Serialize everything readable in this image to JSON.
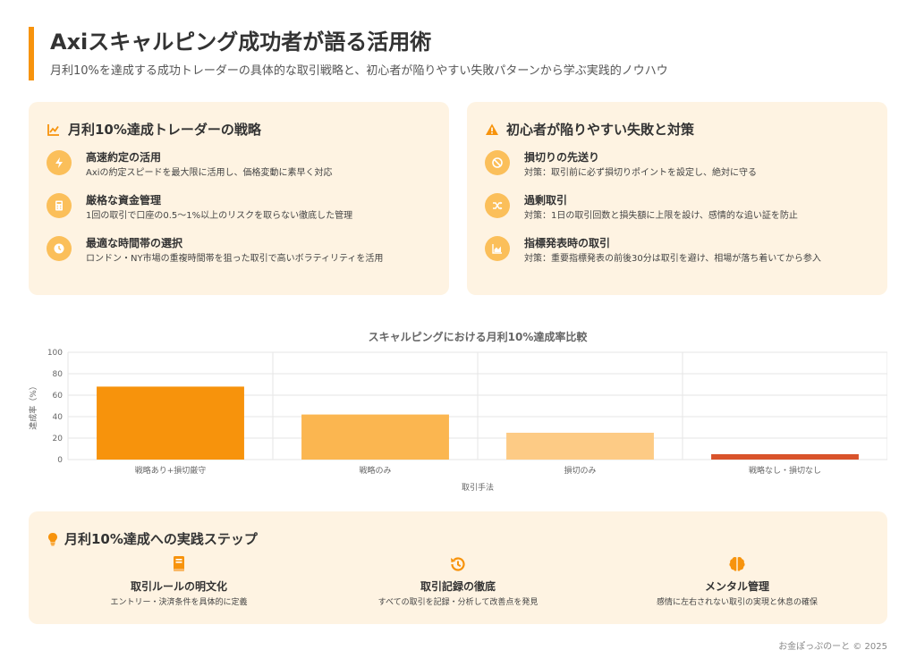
{
  "header": {
    "title": "Axiスキャルピング成功者が語る活用術",
    "subtitle": "月利10%を達成する成功トレーダーの具体的な取引戦略と、初心者が陥りやすい失敗パターンから学ぶ実践的ノウハウ"
  },
  "strategy": {
    "title": "月利10%達成トレーダーの戦略",
    "icon": "chart-line-icon",
    "items": [
      {
        "icon": "bolt-icon",
        "title": "高速約定の活用",
        "desc": "Axiの約定スピードを最大限に活用し、価格変動に素早く対応"
      },
      {
        "icon": "calculator-icon",
        "title": "厳格な資金管理",
        "desc": "1回の取引で口座の0.5〜1%以上のリスクを取らない徹底した管理"
      },
      {
        "icon": "clock-icon",
        "title": "最適な時間帯の選択",
        "desc": "ロンドン・NY市場の重複時間帯を狙った取引で高いボラティリティを活用"
      }
    ]
  },
  "failures": {
    "title": "初心者が陥りやすい失敗と対策",
    "icon": "warning-icon",
    "items": [
      {
        "icon": "ban-icon",
        "title": "損切りの先送り",
        "desc": "対策：取引前に必ず損切りポイントを設定し、絶対に守る"
      },
      {
        "icon": "shuffle-icon",
        "title": "過剰取引",
        "desc": "対策：1日の取引回数と損失額に上限を設け、感情的な追い証を防止"
      },
      {
        "icon": "chart-area-icon",
        "title": "指標発表時の取引",
        "desc": "対策：重要指標発表の前後30分は取引を避け、相場が落ち着いてから参入"
      }
    ]
  },
  "chart_data": {
    "type": "bar",
    "title": "スキャルピングにおける月利10%達成率比較",
    "xlabel": "取引手法",
    "ylabel": "達成率（%）",
    "categories": [
      "戦略あり+損切厳守",
      "戦略のみ",
      "損切のみ",
      "戦略なし・損切なし"
    ],
    "values": [
      68,
      42,
      25,
      5
    ],
    "colors": [
      "#f7930c",
      "#fbb650",
      "#fdcb85",
      "#d9532b"
    ],
    "ylim": [
      0,
      100
    ],
    "yticks": [
      0,
      20,
      40,
      60,
      80,
      100
    ],
    "grid": true
  },
  "steps": {
    "title": "月利10%達成への実践ステップ",
    "icon": "lightbulb-icon",
    "items": [
      {
        "icon": "book-icon",
        "title": "取引ルールの明文化",
        "desc": "エントリー・決済条件を具体的に定義"
      },
      {
        "icon": "history-icon",
        "title": "取引記録の徹底",
        "desc": "すべての取引を記録・分析して改善点を発見"
      },
      {
        "icon": "brain-icon",
        "title": "メンタル管理",
        "desc": "感情に左右されない取引の実現と休息の確保"
      }
    ]
  },
  "footer": {
    "text": "お金ぽっぷのーと © 2025"
  },
  "colors": {
    "accent": "#f7930c",
    "card_bg": "#fef3e2",
    "icon_bg": "#fbbf5a"
  }
}
